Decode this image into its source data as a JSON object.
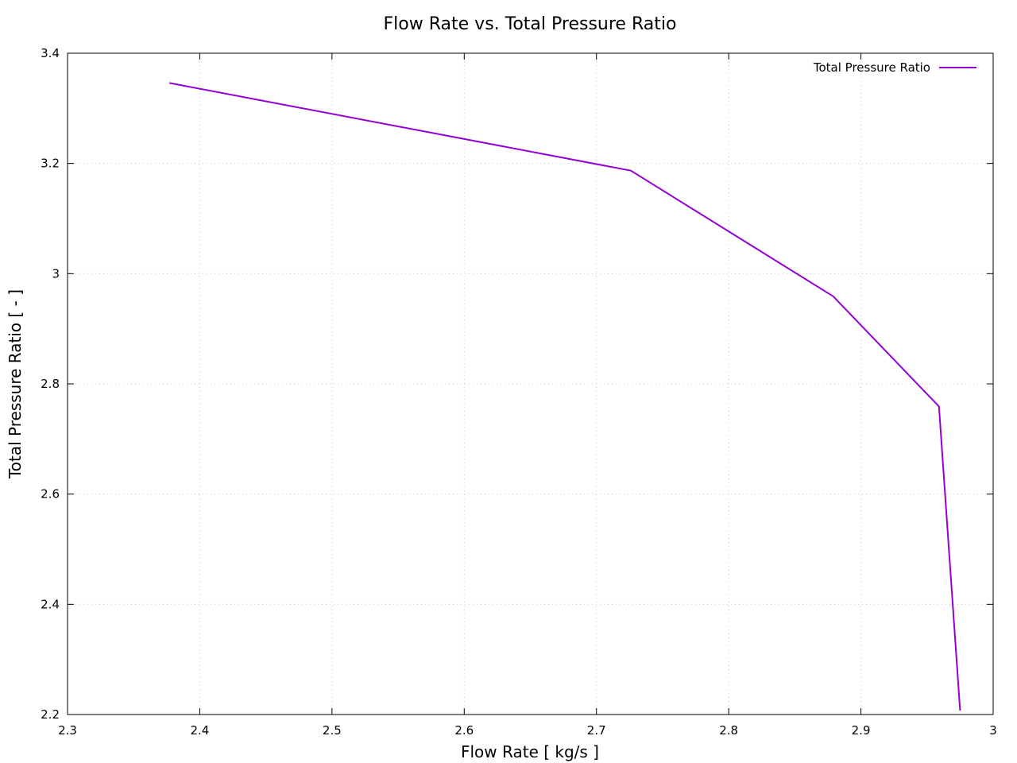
{
  "chart_data": {
    "type": "line",
    "title": "Flow Rate vs. Total Pressure Ratio",
    "xlabel": "Flow Rate [ kg/s ]",
    "ylabel": "Total Pressure Ratio [ - ]",
    "xlim": [
      2.3,
      3.0
    ],
    "ylim": [
      2.2,
      3.4
    ],
    "xticks": [
      "2.3",
      "2.4",
      "2.5",
      "2.6",
      "2.7",
      "2.8",
      "2.9",
      "3"
    ],
    "yticks": [
      "2.2",
      "2.4",
      "2.6",
      "2.8",
      "3",
      "3.2",
      "3.4"
    ],
    "grid": true,
    "legend_position": "top-right",
    "series": [
      {
        "name": "Total Pressure Ratio",
        "color": "#9400d3",
        "x": [
          2.377,
          2.726,
          2.879,
          2.959,
          2.975
        ],
        "y": [
          3.346,
          3.187,
          2.959,
          2.759,
          2.207
        ]
      }
    ]
  }
}
